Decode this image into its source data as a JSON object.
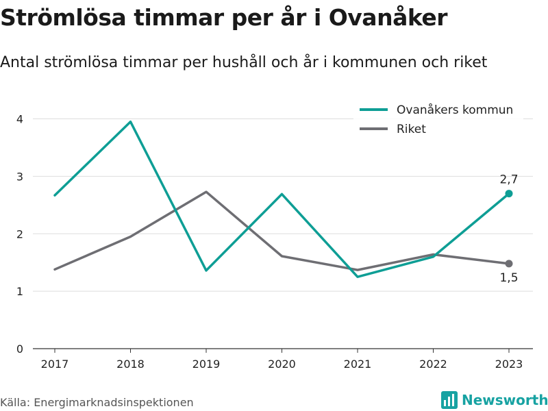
{
  "header": {
    "title": "Strömlösa timmar per år i Ovanåker",
    "subtitle": "Antal strömlösa timmar per hushåll och år i kommunen och riket"
  },
  "footer": {
    "source": "Källa: Energimarknadsinspektionen",
    "brand": "Newsworthy",
    "brand_icon": "bar-chart-logo-icon"
  },
  "colors": {
    "kommun": "#0e9e95",
    "riket": "#6e6e73",
    "grid": "#dddddd",
    "axis": "#333333",
    "brand": "#17a2a2"
  },
  "chart_data": {
    "type": "line",
    "x": [
      "2017",
      "2018",
      "2019",
      "2020",
      "2021",
      "2022",
      "2023"
    ],
    "ylim": [
      0,
      4.4
    ],
    "yticks": [
      "0",
      "1",
      "2",
      "3",
      "4"
    ],
    "grid": true,
    "legend": "top-right",
    "series": [
      {
        "name": "Ovanåkers kommun",
        "values": [
          2.67,
          3.95,
          1.36,
          2.69,
          1.25,
          1.6,
          2.7
        ],
        "end_label": "2,7"
      },
      {
        "name": "Riket",
        "values": [
          1.38,
          1.95,
          2.73,
          1.61,
          1.37,
          1.64,
          1.48
        ],
        "end_label": "1,5"
      }
    ]
  }
}
